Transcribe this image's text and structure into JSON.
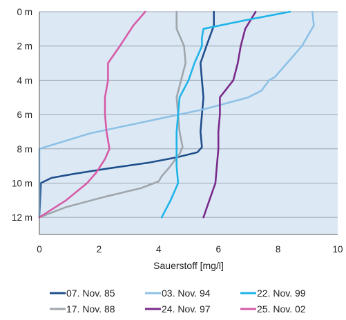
{
  "chart_data": {
    "type": "line",
    "title": "",
    "xlabel": "Sauerstoff [mg/l]",
    "ylabel": "",
    "xlim": [
      0,
      10
    ],
    "ylim": [
      0,
      13
    ],
    "y_inverted": true,
    "grid": "horizontal",
    "background": "#dce9f5",
    "legend_position": "bottom",
    "x_ticks": [
      0,
      2,
      4,
      6,
      8,
      10
    ],
    "x_tick_labels": [
      "0",
      "2",
      "4",
      "6",
      "8",
      "10"
    ],
    "y_ticks": [
      0,
      2,
      4,
      6,
      8,
      10,
      12
    ],
    "y_tick_labels": [
      "0 m",
      "2 m",
      "4 m",
      "6 m",
      "8 m",
      "10 m",
      "12 m"
    ],
    "series": [
      {
        "name": "07. Nov. 85",
        "color": "#1f4e8c",
        "points": [
          [
            5.85,
            0
          ],
          [
            5.85,
            0.8
          ],
          [
            5.6,
            2
          ],
          [
            5.4,
            3
          ],
          [
            5.45,
            4
          ],
          [
            5.5,
            5
          ],
          [
            5.45,
            6
          ],
          [
            5.4,
            7
          ],
          [
            5.45,
            7.9
          ],
          [
            5.3,
            8.2
          ],
          [
            4.6,
            8.5
          ],
          [
            3.7,
            8.8
          ],
          [
            2.3,
            9.15
          ],
          [
            1.2,
            9.45
          ],
          [
            0.4,
            9.7
          ],
          [
            0.05,
            10
          ],
          [
            0.0,
            12
          ]
        ]
      },
      {
        "name": "17. Nov. 88",
        "color": "#9fa5ab",
        "points": [
          [
            4.6,
            0
          ],
          [
            4.6,
            1
          ],
          [
            4.85,
            2
          ],
          [
            4.9,
            3
          ],
          [
            4.75,
            4
          ],
          [
            4.6,
            5
          ],
          [
            4.65,
            6
          ],
          [
            4.7,
            7
          ],
          [
            4.8,
            7.9
          ],
          [
            4.7,
            8.3
          ],
          [
            4.35,
            9.1
          ],
          [
            4.1,
            9.6
          ],
          [
            4.0,
            9.9
          ],
          [
            3.4,
            10.3
          ],
          [
            2.2,
            10.8
          ],
          [
            0.9,
            11.4
          ],
          [
            0.0,
            12
          ]
        ]
      },
      {
        "name": "03. Nov. 94",
        "color": "#8ec1e6",
        "points": [
          [
            9.15,
            0
          ],
          [
            9.2,
            0.8
          ],
          [
            8.8,
            2
          ],
          [
            8.4,
            2.8
          ],
          [
            7.9,
            3.8
          ],
          [
            7.7,
            4
          ],
          [
            7.45,
            4.6
          ],
          [
            7.0,
            5
          ],
          [
            5.5,
            5.7
          ],
          [
            3.6,
            6.4
          ],
          [
            1.7,
            7.1
          ],
          [
            0.0,
            8
          ],
          [
            0.0,
            12
          ]
        ]
      },
      {
        "name": "24. Nov. 97",
        "color": "#7a2a8a",
        "points": [
          [
            7.25,
            0
          ],
          [
            6.9,
            1
          ],
          [
            6.75,
            2
          ],
          [
            6.65,
            3
          ],
          [
            6.5,
            4
          ],
          [
            6.05,
            5
          ],
          [
            6.05,
            6
          ],
          [
            6.0,
            7
          ],
          [
            6.0,
            8
          ],
          [
            5.95,
            9
          ],
          [
            5.9,
            10
          ],
          [
            5.7,
            11
          ],
          [
            5.5,
            12
          ]
        ]
      },
      {
        "name": "22. Nov. 99",
        "color": "#1eb4e8",
        "points": [
          [
            8.4,
            0
          ],
          [
            6.9,
            0.5
          ],
          [
            5.5,
            1
          ],
          [
            5.45,
            1.5
          ],
          [
            5.45,
            2
          ],
          [
            5.2,
            3
          ],
          [
            5.0,
            4
          ],
          [
            4.7,
            5
          ],
          [
            4.65,
            6
          ],
          [
            4.6,
            7
          ],
          [
            4.6,
            8
          ],
          [
            4.6,
            9
          ],
          [
            4.65,
            10
          ],
          [
            4.4,
            11
          ],
          [
            4.1,
            12
          ]
        ]
      },
      {
        "name": "25. Nov. 02",
        "color": "#d65ba7",
        "points": [
          [
            3.55,
            0
          ],
          [
            3.15,
            0.8
          ],
          [
            2.7,
            2
          ],
          [
            2.3,
            3
          ],
          [
            2.3,
            4
          ],
          [
            2.2,
            5
          ],
          [
            2.2,
            6
          ],
          [
            2.25,
            7
          ],
          [
            2.35,
            8
          ],
          [
            2.2,
            8.6
          ],
          [
            1.9,
            9.4
          ],
          [
            1.6,
            10
          ],
          [
            0.9,
            11
          ],
          [
            0.0,
            12
          ]
        ]
      }
    ]
  }
}
